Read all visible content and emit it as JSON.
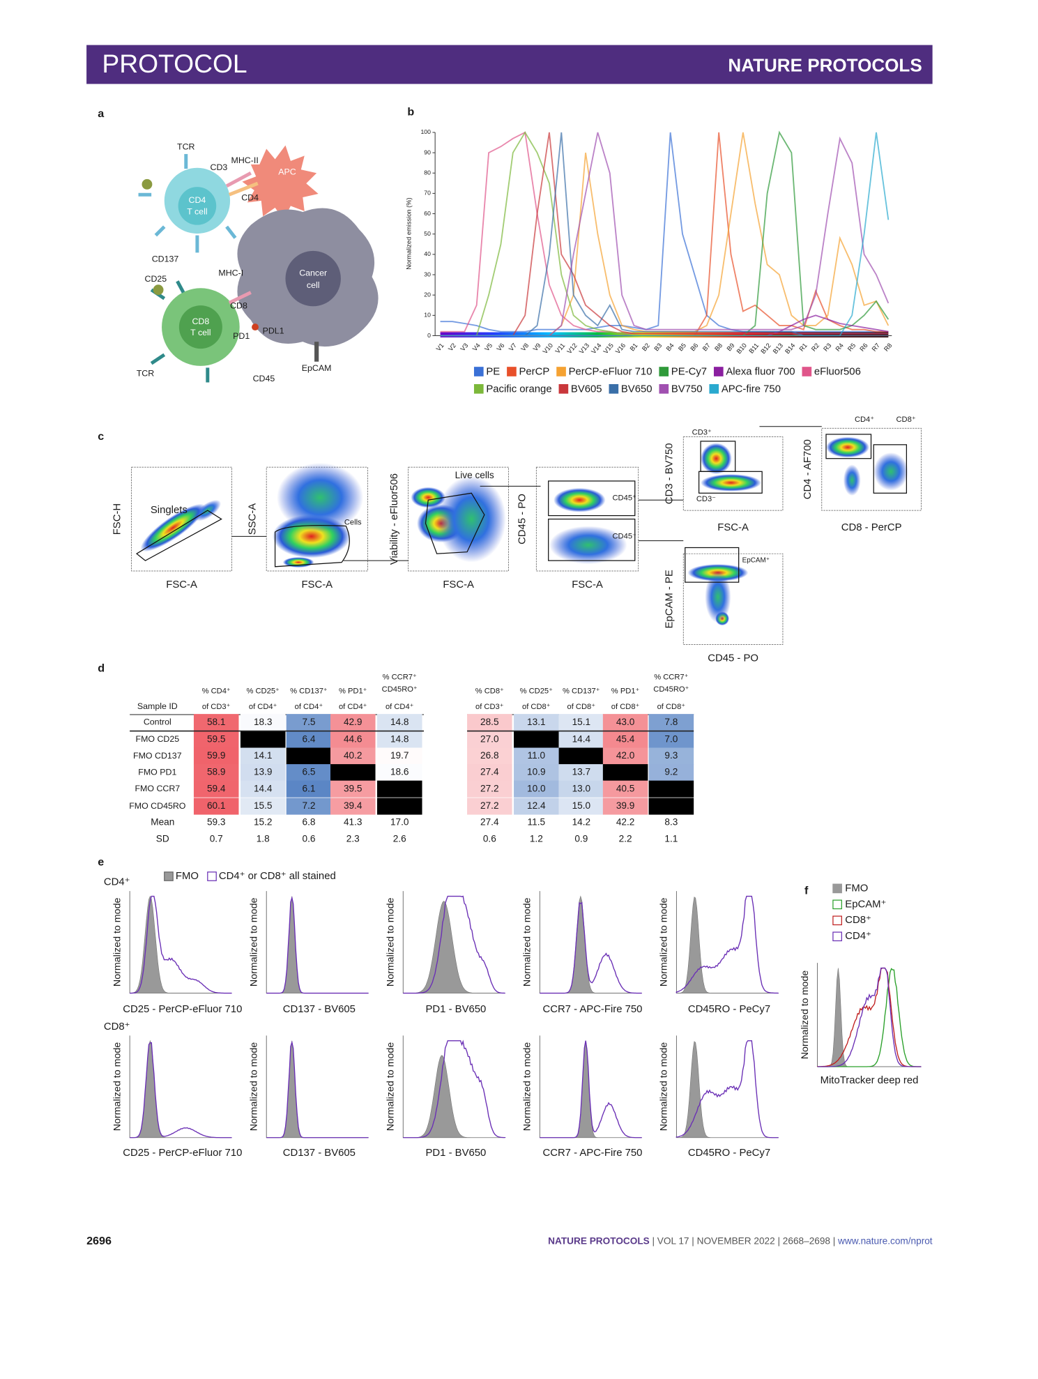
{
  "header": {
    "section": "PROTOCOL",
    "journal": "NATURE PROTOCOLS"
  },
  "panel_a": {
    "label": "a",
    "labels": [
      "TCR",
      "MHC-II",
      "CD3",
      "APC",
      "CD4",
      "T cell",
      "CD4",
      "CD137",
      "CD25",
      "MHC-I",
      "Cancer",
      "cell",
      "CD8",
      "CD8",
      "T cell",
      "PD1",
      "PDL1",
      "TCR",
      "CD45",
      "EpCAM"
    ]
  },
  "panel_b": {
    "label": "b"
  },
  "chart_data": {
    "type": "line",
    "y_label": "Normalized emission (%)",
    "categories": [
      "V1",
      "V2",
      "V3",
      "V4",
      "V5",
      "V6",
      "V7",
      "V8",
      "V9",
      "V10",
      "V11",
      "V12",
      "V13",
      "V14",
      "V15",
      "V16",
      "B1",
      "B2",
      "B3",
      "B4",
      "B5",
      "B6",
      "B7",
      "B8",
      "B9",
      "B10",
      "B11",
      "B12",
      "B13",
      "B14",
      "R1",
      "R2",
      "R3",
      "R4",
      "R5",
      "R6",
      "R7",
      "R8"
    ],
    "ylim": [
      0,
      100
    ],
    "yticks": [
      0,
      10,
      20,
      30,
      40,
      50,
      60,
      70,
      80,
      90,
      100
    ],
    "series": [
      {
        "name": "PE",
        "color": "#3a70d6",
        "values": [
          7,
          7,
          6,
          5,
          3,
          2,
          2,
          2,
          3,
          3,
          3,
          3,
          3,
          4,
          5,
          5,
          4,
          3,
          5,
          100,
          50,
          30,
          10,
          5,
          3,
          2,
          2,
          2,
          2,
          2,
          2,
          2,
          2,
          2,
          2,
          2,
          2,
          2
        ]
      },
      {
        "name": "PerCP",
        "color": "#e8502a",
        "values": [
          0,
          0,
          0,
          0,
          0,
          0,
          0,
          0,
          0,
          0,
          0,
          0,
          0,
          0,
          0,
          0,
          0,
          0,
          0,
          0,
          0,
          0,
          10,
          100,
          40,
          12,
          15,
          10,
          5,
          5,
          3,
          22,
          8,
          5,
          3,
          3,
          2,
          2
        ]
      },
      {
        "name": "PerCP-eFluor 710",
        "color": "#f5a232",
        "values": [
          0,
          0,
          0,
          0,
          0,
          0,
          0,
          0,
          0,
          0,
          5,
          20,
          90,
          50,
          20,
          5,
          3,
          2,
          2,
          2,
          2,
          2,
          5,
          20,
          60,
          100,
          65,
          35,
          30,
          10,
          5,
          5,
          10,
          48,
          35,
          15,
          17,
          5
        ]
      },
      {
        "name": "PE-Cy7",
        "color": "#2f9a3a",
        "values": [
          0,
          0,
          0,
          0,
          0,
          0,
          0,
          0,
          0,
          0,
          0,
          0,
          0,
          0,
          0,
          0,
          0,
          0,
          0,
          0,
          0,
          0,
          0,
          0,
          0,
          0,
          5,
          70,
          100,
          90,
          5,
          3,
          3,
          3,
          5,
          10,
          17,
          8
        ]
      },
      {
        "name": "Alexa fluor 700",
        "color": "#8b1fa0",
        "values": [
          0,
          0,
          0,
          0,
          0,
          0,
          0,
          0,
          0,
          0,
          0,
          0,
          0,
          0,
          0,
          0,
          0,
          0,
          0,
          0,
          0,
          0,
          0,
          0,
          0,
          0,
          0,
          0,
          2,
          5,
          8,
          10,
          8,
          6,
          5,
          4,
          3,
          2
        ]
      },
      {
        "name": "eFluor506",
        "color": "#e0558a",
        "values": [
          2,
          2,
          2,
          15,
          90,
          93,
          97,
          100,
          60,
          25,
          10,
          5,
          3,
          2,
          2,
          1,
          1,
          1,
          1,
          1,
          1,
          1,
          1,
          1,
          1,
          1,
          1,
          1,
          1,
          1,
          1,
          1,
          1,
          1,
          1,
          1,
          1,
          1
        ]
      },
      {
        "name": "Pacific orange",
        "color": "#7cb83a",
        "values": [
          0,
          0,
          0,
          0,
          20,
          45,
          90,
          100,
          90,
          75,
          30,
          10,
          5,
          3,
          2,
          1,
          0,
          0,
          0,
          0,
          0,
          0,
          0,
          0,
          0,
          0,
          0,
          0,
          0,
          0,
          0,
          0,
          0,
          0,
          0,
          0,
          0,
          0
        ]
      },
      {
        "name": "BV605",
        "color": "#c9373b",
        "values": [
          0,
          0,
          0,
          0,
          0,
          0,
          0,
          10,
          60,
          100,
          40,
          30,
          15,
          10,
          5,
          2,
          1,
          1,
          1,
          1,
          1,
          1,
          1,
          1,
          1,
          1,
          1,
          1,
          1,
          1,
          0,
          0,
          0,
          0,
          0,
          0,
          0,
          0
        ]
      },
      {
        "name": "BV650",
        "color": "#3a6fa8",
        "values": [
          0,
          0,
          0,
          0,
          0,
          0,
          0,
          0,
          5,
          40,
          100,
          20,
          10,
          5,
          15,
          3,
          2,
          2,
          2,
          2,
          2,
          2,
          2,
          2,
          2,
          2,
          2,
          2,
          2,
          2,
          0,
          0,
          0,
          0,
          0,
          0,
          0,
          0
        ]
      },
      {
        "name": "BV750",
        "color": "#a050b0",
        "values": [
          0,
          0,
          0,
          0,
          0,
          0,
          0,
          0,
          0,
          0,
          5,
          40,
          70,
          100,
          80,
          20,
          5,
          3,
          3,
          3,
          3,
          3,
          3,
          3,
          3,
          3,
          3,
          3,
          3,
          3,
          5,
          20,
          60,
          97,
          85,
          40,
          30,
          16
        ]
      },
      {
        "name": "APC-fire 750",
        "color": "#2aa9cf",
        "values": [
          0,
          0,
          0,
          0,
          0,
          0,
          0,
          0,
          0,
          0,
          0,
          0,
          0,
          0,
          0,
          0,
          0,
          0,
          0,
          0,
          0,
          0,
          0,
          0,
          0,
          0,
          0,
          0,
          0,
          0,
          0,
          0,
          0,
          0,
          10,
          50,
          100,
          57
        ]
      }
    ]
  },
  "panel_c": {
    "label": "c",
    "plots": [
      {
        "y_label": "FSC-H",
        "x_label": "FSC-A",
        "gates": [
          "Singlets"
        ]
      },
      {
        "y_label": "SSC-A",
        "x_label": "FSC-A",
        "gates": [
          "Cells"
        ]
      },
      {
        "y_label": "Viability - eFluor506",
        "x_label": "FSC-A",
        "gates": [
          "Live cells"
        ]
      },
      {
        "y_label": "CD45 - PO",
        "x_label": "FSC-A",
        "gates": [
          "CD45⁺",
          "CD45⁻"
        ]
      },
      {
        "y_label": "CD3 - BV750",
        "x_label": "FSC-A",
        "gates": [
          "CD3⁺",
          "CD3⁻"
        ]
      },
      {
        "y_label": "CD4 - AF700",
        "x_label": "CD8 - PerCP",
        "gates": [
          "CD4⁺",
          "CD8⁺"
        ]
      },
      {
        "y_label": "EpCAM - PE",
        "x_label": "CD45 - PO",
        "gates": [
          "EpCAM⁺"
        ]
      }
    ]
  },
  "panel_d": {
    "label": "d",
    "colors": {
      "low": "#5b86c5",
      "mid": "#ffffff",
      "high": "#f0636b",
      "empty": "#000000"
    },
    "table": {
      "id_header": "Sample ID",
      "headers": [
        [
          "% CD4⁺",
          "of CD3⁺"
        ],
        [
          "% CD25⁺",
          "of CD4⁺"
        ],
        [
          "% CD137⁺",
          "of CD4⁺"
        ],
        [
          "% PD1⁺",
          "of CD4⁺"
        ],
        [
          "% CCR7⁺",
          "CD45RO⁺",
          "of CD4⁺"
        ],
        [
          "% CD8⁺",
          "of CD3⁺"
        ],
        [
          "% CD25⁺",
          "of CD8⁺"
        ],
        [
          "% CD137⁺",
          "of CD8⁺"
        ],
        [
          "% PD1⁺",
          "of CD8⁺"
        ],
        [
          "% CCR7⁺",
          "CD45RO⁺",
          "of CD8⁺"
        ]
      ],
      "rows": [
        {
          "id": "Control",
          "cells": [
            "58.1",
            "18.3",
            "7.5",
            "42.9",
            "14.8",
            "28.5",
            "13.1",
            "15.1",
            "43.0",
            "7.8"
          ]
        },
        {
          "id": "FMO CD25",
          "cells": [
            "59.5",
            null,
            "6.4",
            "44.6",
            "14.8",
            "27.0",
            null,
            "14.4",
            "45.4",
            "7.0"
          ]
        },
        {
          "id": "FMO CD137",
          "cells": [
            "59.9",
            "14.1",
            null,
            "40.2",
            "19.7",
            "26.8",
            "11.0",
            null,
            "42.0",
            "9.3"
          ]
        },
        {
          "id": "FMO PD1",
          "cells": [
            "58.9",
            "13.9",
            "6.5",
            null,
            "18.6",
            "27.4",
            "10.9",
            "13.7",
            null,
            "9.2"
          ]
        },
        {
          "id": "FMO CCR7",
          "cells": [
            "59.4",
            "14.4",
            "6.1",
            "39.5",
            null,
            "27.2",
            "10.0",
            "13.0",
            "40.5",
            null
          ]
        },
        {
          "id": "FMO CD45RO",
          "cells": [
            "60.1",
            "15.5",
            "7.2",
            "39.4",
            null,
            "27.2",
            "12.4",
            "15.0",
            "39.9",
            null
          ]
        }
      ],
      "summary": [
        {
          "id": "Mean",
          "cells": [
            "59.3",
            "15.2",
            "6.8",
            "41.3",
            "17.0",
            "27.4",
            "11.5",
            "14.2",
            "42.2",
            "8.3"
          ]
        },
        {
          "id": "SD",
          "cells": [
            "0.7",
            "1.8",
            "0.6",
            "2.3",
            "2.6",
            "0.6",
            "1.2",
            "0.9",
            "2.2",
            "1.1"
          ]
        }
      ]
    }
  },
  "panel_e": {
    "label": "e",
    "legend": [
      "FMO",
      "CD4⁺ or CD8⁺ all stained"
    ],
    "row_labels": [
      "CD4⁺",
      "CD8⁺"
    ],
    "y_label": "Normalized to mode",
    "x_labels": [
      "CD25 - PerCP-eFluor 710",
      "CD137 - BV605",
      "PD1 - BV650",
      "CCR7 - APC-Fire 750",
      "CD45RO - PeCy7"
    ]
  },
  "panel_f": {
    "label": "f",
    "legend": [
      "FMO",
      "EpCAM⁺",
      "CD8⁺",
      "CD4⁺"
    ],
    "y_label": "Normalized to mode",
    "x_label": "MitoTracker deep red"
  },
  "footer": {
    "page": "2696",
    "journal": "NATURE PROTOCOLS",
    "citation": "| VOL 17 | NOVEMBER 2022 | 2668–2698 |",
    "url": "www.nature.com/nprot"
  }
}
